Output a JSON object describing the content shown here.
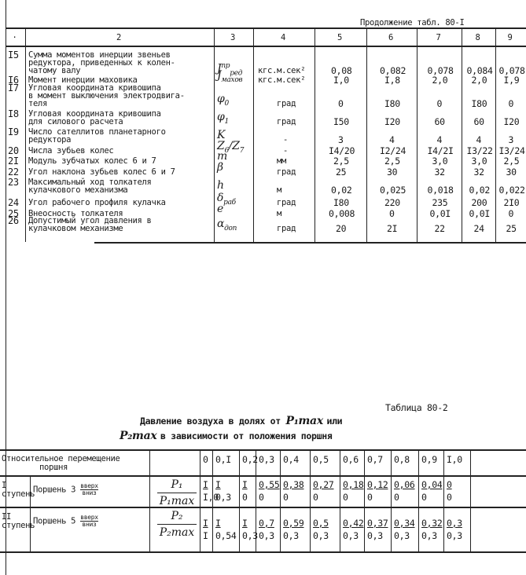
{
  "table1": {
    "continuation_label": "Продолжение табл. 80-I",
    "header": [
      "·",
      "2",
      "3",
      "4",
      "5",
      "6",
      "7",
      "8",
      "9"
    ],
    "rows": [
      {
        "num": "I5",
        "text": [
          "Сумма моментов инерции звеньев",
          "редуктора, приведенных к колен-",
          "чатому валу"
        ],
        "symbol": {
          "base": "J",
          "sub": "ред",
          "sup": "пр"
        },
        "unit": "кгс.м.сек²",
        "values": [
          "0,08",
          "0,082",
          "0,078",
          "0,084",
          "0,078"
        ]
      },
      {
        "num": "I6",
        "text": [
          "Момент инерции маховика"
        ],
        "symbol": {
          "base": "J",
          "sub": "махов",
          "sup": ""
        },
        "unit": "кгс.м.сек²",
        "values": [
          "I,0",
          "I,8",
          "2,0",
          "2,0",
          "I,9"
        ]
      },
      {
        "num": "I7",
        "text": [
          "Угловая координата кривошипа",
          "в момент выключения электродвига-",
          "теля"
        ],
        "symbol": {
          "base": "φ",
          "sub": "0",
          "sup": ""
        },
        "unit": "град",
        "values": [
          "0",
          "I80",
          "0",
          "I80",
          "0"
        ]
      },
      {
        "num": "I8",
        "text": [
          "Угловая координата кривошипа",
          "для силового расчета"
        ],
        "symbol": {
          "base": "φ",
          "sub": "1",
          "sup": ""
        },
        "unit": "град",
        "values": [
          "I50",
          "I20",
          "60",
          "60",
          "I20"
        ]
      },
      {
        "num": "I9",
        "text": [
          "Число сателлитов планетарного",
          "редуктора"
        ],
        "symbol": {
          "base": "K",
          "sub": "",
          "sup": ""
        },
        "unit": "-",
        "values": [
          "3",
          "4",
          "4",
          "4",
          "3"
        ]
      },
      {
        "num": "20",
        "text": [
          "Числа зубьев колес"
        ],
        "symbol": {
          "base": "Z",
          "sub": "6",
          "sup": "",
          "tail": "/Z",
          "tail_sub": "7"
        },
        "unit": "-",
        "values": [
          "I4/20",
          "I2/24",
          "I4/2I",
          "I3/22",
          "I3/24"
        ]
      },
      {
        "num": "2I",
        "text": [
          "Модуль зубчатых колес 6 и 7"
        ],
        "symbol": {
          "base": "m",
          "sub": "",
          "sup": ""
        },
        "unit": "мм",
        "values": [
          "2,5",
          "2,5",
          "3,0",
          "3,0",
          "2,5"
        ]
      },
      {
        "num": "22",
        "text": [
          "Угол наклона зубьев колес 6 и 7"
        ],
        "symbol": {
          "base": "β",
          "sub": "",
          "sup": ""
        },
        "unit": "град",
        "values": [
          "25",
          "30",
          "32",
          "32",
          "30"
        ]
      },
      {
        "num": "23",
        "text": [
          "Максимальный ход толкателя",
          "кулачкового механизма"
        ],
        "symbol": {
          "base": "h",
          "sub": "",
          "sup": ""
        },
        "unit": "м",
        "values": [
          "0,02",
          "0,025",
          "0,018",
          "0,02",
          "0,022"
        ]
      },
      {
        "num": "24",
        "text": [
          "Угол рабочего профиля кулачка"
        ],
        "symbol": {
          "base": "δ",
          "sub": "раб",
          "sup": ""
        },
        "unit": "град",
        "values": [
          "I80",
          "220",
          "235",
          "200",
          "2I0"
        ]
      },
      {
        "num": "25",
        "text": [
          "Внеосность толкателя"
        ],
        "symbol": {
          "base": "e",
          "sub": "",
          "sup": ""
        },
        "unit": "м",
        "values": [
          "0,008",
          "0",
          "0,0I",
          "0,0I",
          "0"
        ]
      },
      {
        "num": "26",
        "text": [
          "Допустимый угол давления в",
          "кулачковом механизме"
        ],
        "symbol": {
          "base": "α",
          "sub": "доп",
          "sup": ""
        },
        "unit": "град",
        "values": [
          "20",
          "2I",
          "22",
          "24",
          "25"
        ]
      }
    ]
  },
  "table2": {
    "label": "Таблица 80-2",
    "caption_line1": "Давление воздуха в долях от",
    "caption_sym1": "P₁max",
    "caption_or": "или",
    "caption_sym2": "P₂max",
    "caption_line2": "в зависимости от положения поршня",
    "header_label": [
      "Относительное перемещение",
      "поршня"
    ],
    "positions": [
      "0",
      "0,I",
      "0,2",
      "0,3",
      "0,4",
      "0,5",
      "0,6",
      "0,7",
      "0,8",
      "0,9",
      "I,0"
    ],
    "rows": [
      {
        "stage": [
          "I",
          "ступень"
        ],
        "piston": "Поршень 3",
        "up": "вверх",
        "down": "вниз",
        "ratio_num": "P₁",
        "ratio_den": "P₁max",
        "up_values": [
          "I",
          "I",
          "I",
          "0,55",
          "0,38",
          "0,27",
          "0,18",
          "0,12",
          "0,06",
          "0,04",
          "0"
        ],
        "down_values": [
          "I,0",
          "0,3",
          "0",
          "0",
          "0",
          "0",
          "0",
          "0",
          "0",
          "0",
          "0"
        ]
      },
      {
        "stage": [
          "II",
          "ступень"
        ],
        "piston": "Поршень 5",
        "up": "вверх",
        "down": "вниз",
        "ratio_num": "P₂",
        "ratio_den": "P₂max",
        "up_values": [
          "I",
          "I",
          "I",
          "0,7",
          "0,59",
          "0,5",
          "0,42",
          "0,37",
          "0,34",
          "0,32",
          "0,3"
        ],
        "down_values": [
          "I",
          "0,54",
          "0,3",
          "0,3",
          "0,3",
          "0,3",
          "0,3",
          "0,3",
          "0,3",
          "0,3",
          "0,3"
        ]
      }
    ]
  }
}
